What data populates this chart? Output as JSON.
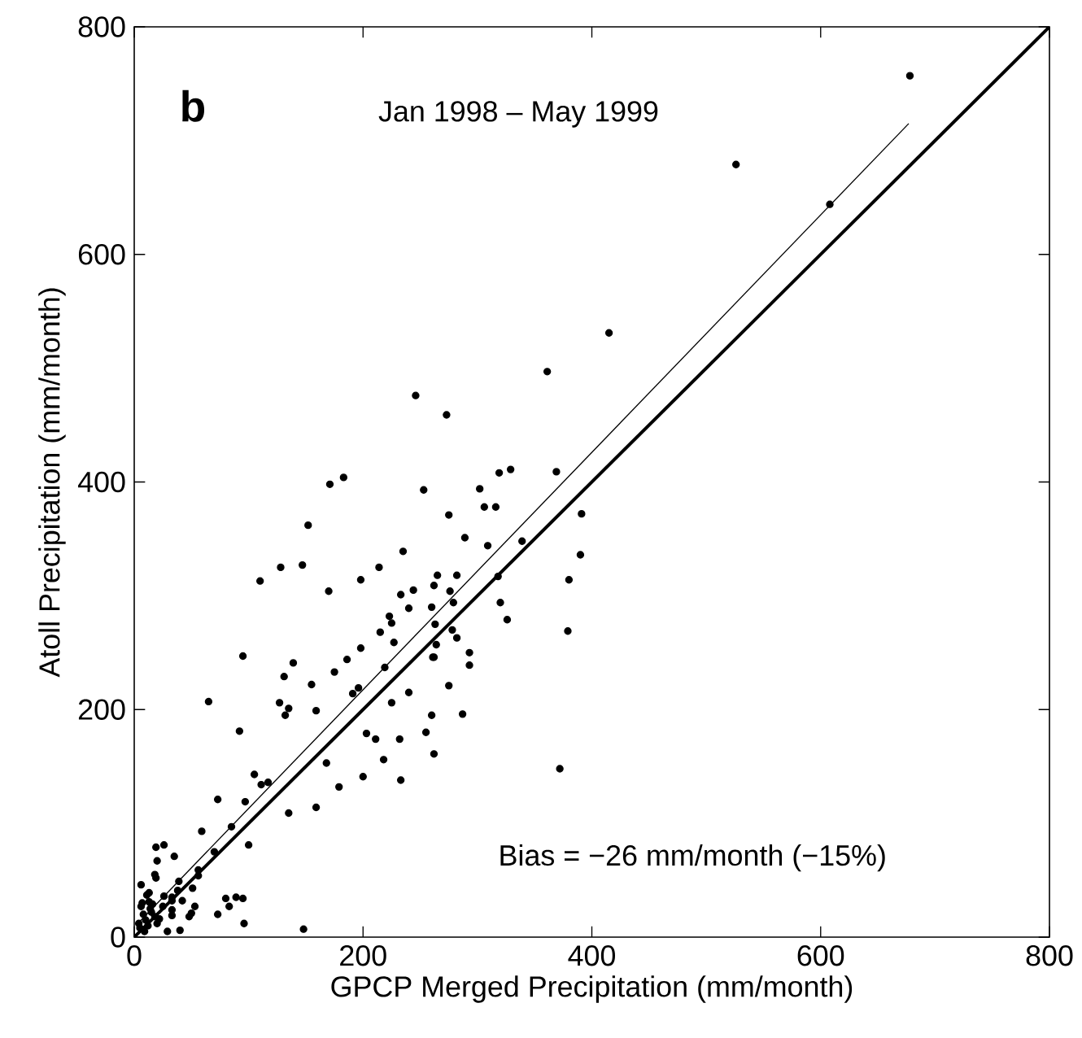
{
  "chart_data": {
    "type": "scatter",
    "xlabel": "GPCP Merged Precipitation (mm/month)",
    "ylabel": "Atoll Precipitation (mm/month)",
    "annotations": [
      "b",
      "Jan 1998 – May 1999",
      "Bias = −26 mm/month (−15%)"
    ],
    "xlim": [
      0,
      800
    ],
    "ylim": [
      0,
      800
    ],
    "xticks": [
      0,
      200,
      400,
      600,
      800
    ],
    "yticks": [
      0,
      200,
      400,
      600,
      800
    ],
    "marker": "circle",
    "series": [
      {
        "color": "#000000",
        "x": [
          678,
          526,
          608,
          415,
          361,
          246,
          273,
          171,
          183,
          253,
          275,
          289,
          152,
          235,
          128,
          147,
          214,
          110,
          198,
          170,
          265,
          282,
          262,
          276,
          244,
          233,
          279,
          260,
          240,
          223,
          225,
          263,
          215,
          278,
          227,
          282,
          264,
          261,
          262,
          293,
          293,
          198,
          95,
          139,
          186,
          131,
          175,
          219,
          155,
          275,
          196,
          191,
          240,
          225,
          127,
          135,
          132,
          159,
          260,
          287,
          92,
          203,
          211,
          232,
          255,
          262,
          218,
          168,
          105,
          111,
          117,
          200,
          233,
          179,
          97,
          159,
          135,
          319,
          329,
          369,
          302,
          306,
          316,
          309,
          339,
          391,
          390,
          318,
          380,
          320,
          326,
          379,
          372,
          65,
          73,
          59,
          85,
          100,
          19,
          26,
          35,
          20,
          70,
          18,
          19,
          56,
          56,
          39,
          6,
          51,
          38,
          13,
          11,
          26,
          33,
          42,
          80,
          89,
          95,
          83,
          53,
          13,
          16,
          33,
          25,
          33,
          33,
          50,
          48,
          73,
          96,
          29,
          40,
          148,
          6,
          8,
          10,
          12,
          5,
          15,
          18,
          9,
          20,
          7,
          14,
          22,
          4
        ],
        "values": [
          757,
          679,
          644,
          531,
          497,
          476,
          459,
          398,
          404,
          393,
          371,
          351,
          362,
          339,
          325,
          327,
          325,
          313,
          314,
          304,
          318,
          318,
          309,
          304,
          305,
          301,
          294,
          290,
          289,
          282,
          276,
          275,
          268,
          270,
          259,
          263,
          257,
          246,
          246,
          250,
          239,
          254,
          247,
          241,
          244,
          229,
          233,
          237,
          222,
          221,
          219,
          214,
          215,
          206,
          206,
          201,
          195,
          199,
          195,
          196,
          181,
          179,
          174,
          174,
          180,
          161,
          156,
          153,
          143,
          134,
          136,
          141,
          138,
          132,
          119,
          114,
          109,
          408,
          411,
          409,
          394,
          378,
          378,
          344,
          348,
          372,
          336,
          317,
          314,
          294,
          279,
          269,
          148,
          207,
          121,
          93,
          97,
          81,
          79,
          81,
          71,
          67,
          75,
          55,
          52,
          59,
          54,
          49,
          46,
          43,
          41,
          39,
          37,
          36,
          35,
          32,
          34,
          35,
          34,
          27,
          27,
          31,
          29,
          32,
          27,
          24,
          19,
          21,
          18,
          20,
          12,
          5,
          6,
          7,
          27,
          20,
          15,
          10,
          8,
          22,
          18,
          5,
          12,
          30,
          25,
          16,
          12
        ]
      },
      {
        "type": "line",
        "color": "#000000",
        "marker": "none",
        "x": [
          0,
          800
        ],
        "values": [
          0,
          800
        ]
      },
      {
        "type": "line",
        "color": "#000000",
        "marker": "none",
        "x": [
          5,
          677
        ],
        "values": [
          14,
          715
        ]
      }
    ]
  }
}
